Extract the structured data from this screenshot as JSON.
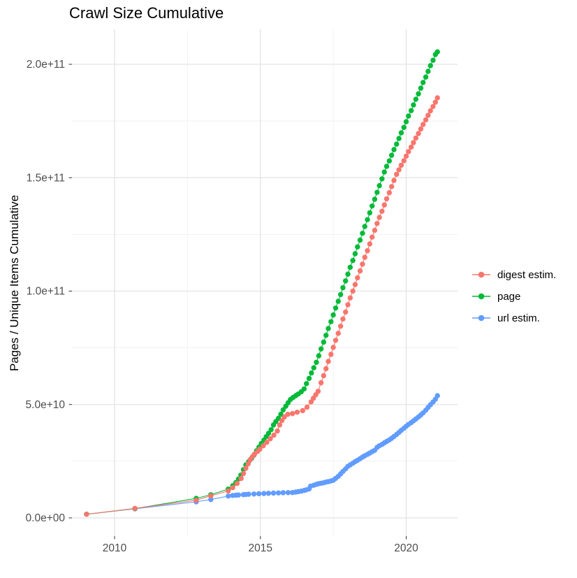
{
  "title": "Crawl Size Cumulative",
  "y_axis": {
    "title": "Pages / Unique Items Cumulative",
    "tick_labels": [
      "0.0e+00",
      "5.0e+10",
      "1.0e+11",
      "1.5e+11",
      "2.0e+11"
    ],
    "tick_values_e9": [
      0,
      50,
      100,
      150,
      200
    ],
    "minor_values_e9": [
      25,
      75,
      125,
      175
    ]
  },
  "x_axis": {
    "tick_labels": [
      "2010",
      "2015",
      "2020"
    ],
    "tick_years": [
      2010,
      2015,
      2020
    ],
    "minor_years": [
      2012.5,
      2017.5
    ]
  },
  "legend": {
    "items": [
      {
        "label": "digest estim.",
        "color": "#F8766D"
      },
      {
        "label": "page",
        "color": "#00BA38"
      },
      {
        "label": "url estim.",
        "color": "#619CFF"
      }
    ]
  },
  "colors": {
    "grid_major": "#E3E3E3",
    "grid_minor": "#F1F1F1",
    "tick_mark": "#333333",
    "tick_label": "#4D4D4D",
    "background": "#FFFFFF"
  },
  "chart_data": {
    "type": "scatter",
    "title": "Crawl Size Cumulative",
    "xlabel": "",
    "ylabel": "Pages / Unique Items Cumulative",
    "x_ticks": [
      2010,
      2015,
      2020
    ],
    "y_ticks_e9": [
      0,
      50,
      100,
      150,
      200
    ],
    "xlim": [
      2008.55,
      2021.75
    ],
    "ylim_e9": [
      0,
      216
    ],
    "grid": true,
    "legend_position": "right",
    "values_unit": "billions of items (1e9)",
    "series": [
      {
        "name": "digest estim.",
        "color": "#F8766D",
        "points": [
          [
            2009.04,
            1.6
          ],
          [
            2010.7,
            4.2
          ],
          [
            2012.8,
            7.8
          ],
          [
            2013.3,
            9.7
          ],
          [
            2013.9,
            11.9
          ],
          [
            2014.05,
            13.3
          ],
          [
            2014.2,
            15.2
          ],
          [
            2014.34,
            17.4
          ],
          [
            2014.42,
            19.6
          ],
          [
            2014.5,
            21.9
          ],
          [
            2014.58,
            23.8
          ],
          [
            2014.65,
            25.6
          ],
          [
            2014.73,
            27.0
          ],
          [
            2014.8,
            28.1
          ],
          [
            2014.9,
            29.3
          ],
          [
            2014.98,
            30.3
          ],
          [
            2015.1,
            31.8
          ],
          [
            2015.22,
            33.3
          ],
          [
            2015.34,
            34.9
          ],
          [
            2015.46,
            36.5
          ],
          [
            2015.58,
            38.3
          ],
          [
            2015.66,
            41.0
          ],
          [
            2015.74,
            42.9
          ],
          [
            2015.82,
            44.5
          ],
          [
            2015.94,
            45.7
          ],
          [
            2016.1,
            46.0
          ],
          [
            2016.26,
            46.6
          ],
          [
            2016.45,
            47.3
          ],
          [
            2016.6,
            48.8
          ],
          [
            2016.74,
            51.2
          ],
          [
            2016.82,
            52.8
          ],
          [
            2016.9,
            54.3
          ],
          [
            2016.98,
            55.8
          ],
          [
            2017.08,
            59.6
          ],
          [
            2017.17,
            62.7
          ],
          [
            2017.25,
            65.8
          ],
          [
            2017.33,
            69.0
          ],
          [
            2017.42,
            72.1
          ],
          [
            2017.5,
            75.2
          ],
          [
            2017.58,
            78.3
          ],
          [
            2017.67,
            81.4
          ],
          [
            2017.75,
            84.5
          ],
          [
            2017.83,
            87.7
          ],
          [
            2017.92,
            90.8
          ],
          [
            2018.0,
            94.0
          ],
          [
            2018.08,
            97.0
          ],
          [
            2018.17,
            100.0
          ],
          [
            2018.25,
            102.9
          ],
          [
            2018.33,
            105.9
          ],
          [
            2018.42,
            108.9
          ],
          [
            2018.5,
            111.9
          ],
          [
            2018.58,
            114.9
          ],
          [
            2018.67,
            117.8
          ],
          [
            2018.75,
            120.8
          ],
          [
            2018.83,
            123.8
          ],
          [
            2018.92,
            126.8
          ],
          [
            2019.0,
            129.8
          ],
          [
            2019.08,
            132.5
          ],
          [
            2019.17,
            135.2
          ],
          [
            2019.25,
            138.0
          ],
          [
            2019.33,
            140.7
          ],
          [
            2019.42,
            143.4
          ],
          [
            2019.5,
            146.1
          ],
          [
            2019.58,
            148.8
          ],
          [
            2019.67,
            151.5
          ],
          [
            2019.75,
            153.5
          ],
          [
            2019.83,
            155.5
          ],
          [
            2019.92,
            157.5
          ],
          [
            2020.0,
            159.5
          ],
          [
            2020.08,
            161.5
          ],
          [
            2020.17,
            163.5
          ],
          [
            2020.25,
            165.5
          ],
          [
            2020.33,
            167.5
          ],
          [
            2020.42,
            169.5
          ],
          [
            2020.5,
            171.5
          ],
          [
            2020.58,
            173.5
          ],
          [
            2020.67,
            175.5
          ],
          [
            2020.75,
            177.5
          ],
          [
            2020.83,
            179.5
          ],
          [
            2020.92,
            181.4
          ],
          [
            2021.0,
            183.3
          ],
          [
            2021.07,
            185.2
          ]
        ]
      },
      {
        "name": "page",
        "color": "#00BA38",
        "points": [
          [
            2009.04,
            1.6
          ],
          [
            2010.7,
            4.1
          ],
          [
            2012.8,
            8.6
          ],
          [
            2013.3,
            10.2
          ],
          [
            2013.9,
            12.7
          ],
          [
            2014.05,
            14.2
          ],
          [
            2014.16,
            15.6
          ],
          [
            2014.25,
            17.1
          ],
          [
            2014.33,
            18.9
          ],
          [
            2014.42,
            21.3
          ],
          [
            2014.5,
            23.4
          ],
          [
            2014.6,
            24.8
          ],
          [
            2014.7,
            26.3
          ],
          [
            2014.78,
            27.7
          ],
          [
            2014.87,
            29.6
          ],
          [
            2014.95,
            31.2
          ],
          [
            2015.03,
            32.8
          ],
          [
            2015.12,
            34.3
          ],
          [
            2015.2,
            35.8
          ],
          [
            2015.28,
            37.3
          ],
          [
            2015.37,
            38.9
          ],
          [
            2015.45,
            41.0
          ],
          [
            2015.53,
            42.5
          ],
          [
            2015.62,
            43.9
          ],
          [
            2015.7,
            45.7
          ],
          [
            2015.78,
            47.6
          ],
          [
            2015.87,
            49.2
          ],
          [
            2015.95,
            50.8
          ],
          [
            2016.03,
            52.2
          ],
          [
            2016.12,
            53.1
          ],
          [
            2016.21,
            53.9
          ],
          [
            2016.3,
            54.6
          ],
          [
            2016.4,
            55.6
          ],
          [
            2016.5,
            56.9
          ],
          [
            2016.58,
            59.2
          ],
          [
            2016.67,
            61.5
          ],
          [
            2016.75,
            63.9
          ],
          [
            2016.83,
            66.2
          ],
          [
            2016.92,
            68.6
          ],
          [
            2017.0,
            71.5
          ],
          [
            2017.08,
            74.5
          ],
          [
            2017.17,
            77.5
          ],
          [
            2017.25,
            80.5
          ],
          [
            2017.33,
            83.5
          ],
          [
            2017.42,
            86.5
          ],
          [
            2017.5,
            89.5
          ],
          [
            2017.58,
            92.5
          ],
          [
            2017.67,
            95.5
          ],
          [
            2017.75,
            98.5
          ],
          [
            2017.83,
            101.5
          ],
          [
            2017.92,
            104.5
          ],
          [
            2018.0,
            107.5
          ],
          [
            2018.08,
            110.5
          ],
          [
            2018.17,
            113.5
          ],
          [
            2018.25,
            116.5
          ],
          [
            2018.33,
            119.5
          ],
          [
            2018.42,
            122.5
          ],
          [
            2018.5,
            125.5
          ],
          [
            2018.58,
            128.5
          ],
          [
            2018.67,
            131.5
          ],
          [
            2018.75,
            134.5
          ],
          [
            2018.83,
            137.5
          ],
          [
            2018.92,
            140.5
          ],
          [
            2019.0,
            143.5
          ],
          [
            2019.08,
            146.5
          ],
          [
            2019.17,
            149.5
          ],
          [
            2019.25,
            152.5
          ],
          [
            2019.33,
            155.0
          ],
          [
            2019.42,
            157.4
          ],
          [
            2019.5,
            159.9
          ],
          [
            2019.58,
            162.4
          ],
          [
            2019.67,
            164.8
          ],
          [
            2019.75,
            167.3
          ],
          [
            2019.83,
            169.8
          ],
          [
            2019.92,
            172.2
          ],
          [
            2020.0,
            174.7
          ],
          [
            2020.08,
            177.2
          ],
          [
            2020.17,
            179.6
          ],
          [
            2020.25,
            182.1
          ],
          [
            2020.33,
            184.6
          ],
          [
            2020.42,
            187.0
          ],
          [
            2020.5,
            189.5
          ],
          [
            2020.58,
            192.0
          ],
          [
            2020.67,
            194.4
          ],
          [
            2020.75,
            196.9
          ],
          [
            2020.83,
            199.4
          ],
          [
            2020.92,
            201.8
          ],
          [
            2021.0,
            204.3
          ],
          [
            2021.07,
            205.5
          ]
        ]
      },
      {
        "name": "url estim.",
        "color": "#619CFF",
        "points": [
          [
            2009.04,
            1.6
          ],
          [
            2010.7,
            4.0
          ],
          [
            2012.8,
            7.1
          ],
          [
            2013.3,
            8.1
          ],
          [
            2013.9,
            9.6
          ],
          [
            2014.05,
            9.9
          ],
          [
            2014.16,
            10.0
          ],
          [
            2014.25,
            10.1
          ],
          [
            2014.42,
            10.25
          ],
          [
            2014.5,
            10.35
          ],
          [
            2014.6,
            10.45
          ],
          [
            2014.78,
            10.55
          ],
          [
            2014.95,
            10.65
          ],
          [
            2015.12,
            10.75
          ],
          [
            2015.28,
            10.85
          ],
          [
            2015.45,
            10.95
          ],
          [
            2015.62,
            11.0
          ],
          [
            2015.78,
            11.1
          ],
          [
            2015.95,
            11.15
          ],
          [
            2016.1,
            11.2
          ],
          [
            2016.21,
            11.4
          ],
          [
            2016.3,
            11.6
          ],
          [
            2016.4,
            11.8
          ],
          [
            2016.5,
            12.1
          ],
          [
            2016.58,
            12.4
          ],
          [
            2016.67,
            12.8
          ],
          [
            2016.72,
            14.0
          ],
          [
            2016.83,
            14.4
          ],
          [
            2016.92,
            14.8
          ],
          [
            2017.0,
            15.1
          ],
          [
            2017.08,
            15.3
          ],
          [
            2017.17,
            15.5
          ],
          [
            2017.25,
            15.8
          ],
          [
            2017.33,
            16.0
          ],
          [
            2017.42,
            16.3
          ],
          [
            2017.5,
            16.6
          ],
          [
            2017.58,
            17.4
          ],
          [
            2017.67,
            18.3
          ],
          [
            2017.75,
            19.4
          ],
          [
            2017.83,
            20.5
          ],
          [
            2017.92,
            21.6
          ],
          [
            2018.0,
            22.7
          ],
          [
            2018.08,
            23.4
          ],
          [
            2018.17,
            24.1
          ],
          [
            2018.25,
            24.8
          ],
          [
            2018.33,
            25.4
          ],
          [
            2018.42,
            26.1
          ],
          [
            2018.5,
            26.8
          ],
          [
            2018.58,
            27.4
          ],
          [
            2018.67,
            28.0
          ],
          [
            2018.75,
            28.6
          ],
          [
            2018.83,
            29.2
          ],
          [
            2018.92,
            29.8
          ],
          [
            2019.0,
            31.1
          ],
          [
            2019.08,
            31.8
          ],
          [
            2019.17,
            32.4
          ],
          [
            2019.25,
            33.1
          ],
          [
            2019.33,
            33.7
          ],
          [
            2019.42,
            34.4
          ],
          [
            2019.5,
            35.1
          ],
          [
            2019.58,
            35.9
          ],
          [
            2019.67,
            36.8
          ],
          [
            2019.75,
            37.7
          ],
          [
            2019.83,
            38.6
          ],
          [
            2019.92,
            39.5
          ],
          [
            2020.0,
            40.4
          ],
          [
            2020.08,
            41.2
          ],
          [
            2020.17,
            42.0
          ],
          [
            2020.25,
            42.8
          ],
          [
            2020.33,
            43.6
          ],
          [
            2020.42,
            44.5
          ],
          [
            2020.5,
            45.4
          ],
          [
            2020.58,
            46.3
          ],
          [
            2020.67,
            47.5
          ],
          [
            2020.75,
            48.7
          ],
          [
            2020.83,
            49.9
          ],
          [
            2020.92,
            51.1
          ],
          [
            2021.0,
            52.3
          ],
          [
            2021.07,
            53.9
          ]
        ]
      }
    ]
  }
}
